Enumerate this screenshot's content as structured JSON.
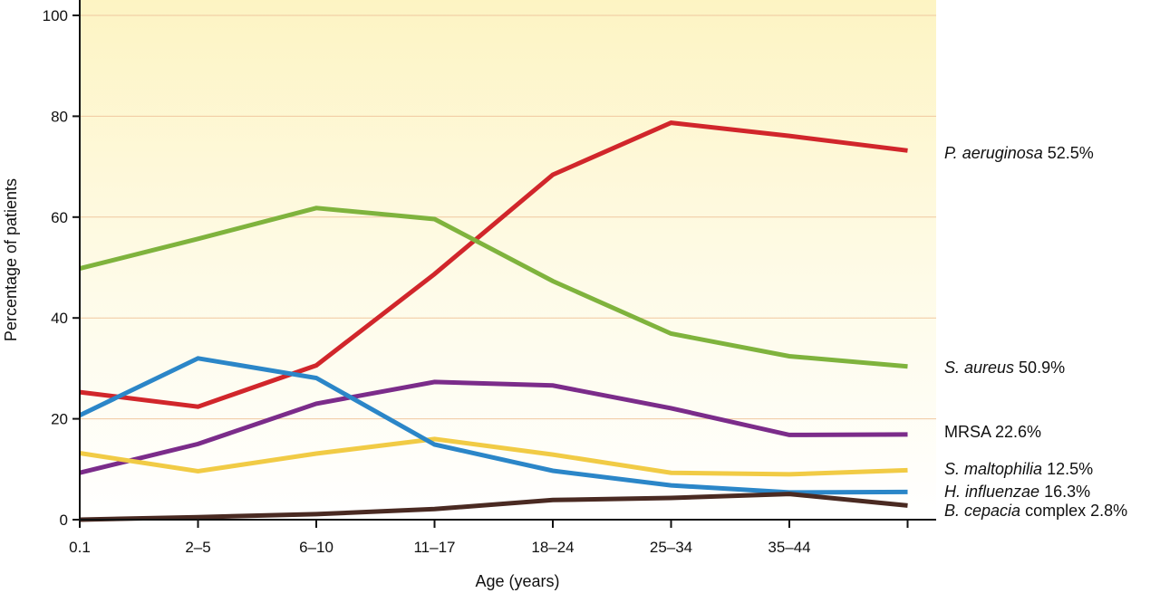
{
  "chart_data": {
    "type": "line",
    "xlabel": "Age (years)",
    "ylabel": "Percentage of patients",
    "ylim": [
      0,
      100
    ],
    "yticks": [
      0,
      20,
      40,
      60,
      80,
      100
    ],
    "categories": [
      "0.1",
      "2–5",
      "6–10",
      "11–17",
      "18–24",
      "25–34",
      "35–44",
      ""
    ],
    "grid": "horizontal",
    "background": "gradient yellow (top) to white (bottom)",
    "legend_placement": "right (direct line labels)",
    "series": [
      {
        "name": "P. aeruginosa",
        "name_italic": "P. aeruginosa",
        "name_rest": "52.5%",
        "color": "#d1262b",
        "values": [
          25.3,
          22.4,
          30.6,
          48.7,
          68.4,
          78.7,
          76.1,
          73.2
        ]
      },
      {
        "name": "S. aureus",
        "name_italic": "S. aureus",
        "name_rest": "50.9%",
        "color": "#7fb33d",
        "values": [
          49.8,
          55.7,
          61.8,
          59.6,
          47.3,
          36.9,
          32.4,
          30.4
        ]
      },
      {
        "name": "MRSA",
        "name_italic": "",
        "name_rest": "MRSA 22.6%",
        "color": "#7b2c8a",
        "values": [
          9.3,
          15.0,
          23.0,
          27.3,
          26.6,
          22.1,
          16.8,
          16.9
        ]
      },
      {
        "name": "S. maltophilia",
        "name_italic": "S. maltophilia",
        "name_rest": "12.5%",
        "color": "#f1cb45",
        "values": [
          13.2,
          9.6,
          13.1,
          16.0,
          12.9,
          9.3,
          9.0,
          9.8
        ]
      },
      {
        "name": "H. influenzae",
        "name_italic": "H. influenzae",
        "name_rest": "16.3%",
        "color": "#2b86c8",
        "values": [
          20.7,
          32.0,
          28.1,
          14.9,
          9.7,
          6.8,
          5.4,
          5.5
        ]
      },
      {
        "name": "B. cepacia complex",
        "name_italic": "B. cepacia",
        "name_rest": "complex 2.8%",
        "color": "#4a2a22",
        "values": [
          0.0,
          0.5,
          1.1,
          2.1,
          3.9,
          4.3,
          5.1,
          2.8
        ]
      }
    ]
  }
}
